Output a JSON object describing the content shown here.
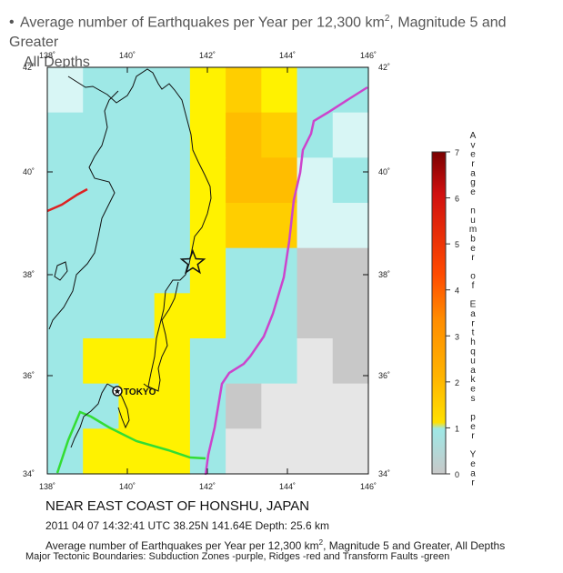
{
  "header": {
    "bullet": "•",
    "title_pre": "Average number of Earthquakes per Year per 12,300 km",
    "title_sup": "2",
    "title_post": ", Magnitude 5 and Greater",
    "title_line2": "All Depths"
  },
  "map": {
    "lon_ticks": [
      "138˚",
      "140˚",
      "142˚",
      "144˚",
      "146˚"
    ],
    "lat_ticks": [
      "42˚",
      "40˚",
      "38˚",
      "36˚",
      "34˚"
    ],
    "city_label": "TOKYO",
    "colors": {
      "cyan": "#9ee8e6",
      "light_cyan": "#d8f6f5",
      "yellow": "#fff200",
      "orange_light": "#ffce00",
      "orange": "#ffbd00",
      "gray": "#c8c8c8",
      "light_gray": "#e6e6e6",
      "subduction": "#cc44cc",
      "ridge": "#dd2222",
      "transform": "#33dd33"
    },
    "grid_values": [
      [
        "light_cyan",
        "cyan",
        "cyan",
        "cyan",
        "yellow",
        "orange_light",
        "yellow",
        "cyan",
        "cyan"
      ],
      [
        "cyan",
        "cyan",
        "cyan",
        "cyan",
        "yellow",
        "orange",
        "orange_light",
        "cyan",
        "light_cyan"
      ],
      [
        "cyan",
        "cyan",
        "cyan",
        "cyan",
        "yellow",
        "orange",
        "orange",
        "light_cyan",
        "cyan"
      ],
      [
        "cyan",
        "cyan",
        "cyan",
        "cyan",
        "yellow",
        "orange_light",
        "orange_light",
        "light_cyan",
        "light_cyan"
      ],
      [
        "cyan",
        "cyan",
        "cyan",
        "cyan",
        "yellow",
        "cyan",
        "cyan",
        "gray",
        "gray"
      ],
      [
        "cyan",
        "cyan",
        "cyan",
        "yellow",
        "yellow",
        "cyan",
        "cyan",
        "gray",
        "gray"
      ],
      [
        "cyan",
        "yellow",
        "yellow",
        "yellow",
        "cyan",
        "cyan",
        "cyan",
        "light_gray",
        "gray"
      ],
      [
        "cyan",
        "cyan",
        "yellow",
        "yellow",
        "cyan",
        "gray",
        "light_gray",
        "light_gray",
        "light_gray"
      ],
      [
        "cyan",
        "yellow",
        "yellow",
        "yellow",
        "cyan",
        "light_gray",
        "light_gray",
        "light_gray",
        "light_gray"
      ]
    ]
  },
  "legend": {
    "ticks": [
      "7",
      "6",
      "5",
      "4",
      "3",
      "2",
      "1",
      "0"
    ],
    "title_letters": [
      "A",
      "v",
      "e",
      "r",
      "a",
      "g",
      "e",
      "",
      "n",
      "u",
      "m",
      "b",
      "e",
      "r",
      "",
      "o",
      "f",
      "",
      "E",
      "a",
      "r",
      "t",
      "h",
      "q",
      "u",
      "a",
      "k",
      "e",
      "s",
      "",
      "p",
      "e",
      "r",
      "",
      "Y",
      "e",
      "a",
      "r"
    ],
    "gradient": [
      "#7a0000",
      "#d01010",
      "#ff4a00",
      "#ff8c00",
      "#ffb400",
      "#ffe000",
      "#9ee8e6",
      "#c8c8c8"
    ]
  },
  "captions": {
    "region": "NEAR EAST COAST OF HONSHU, JAPAN",
    "event": "2011 04 07 14:32:41 UTC 38.25N 141.64E Depth: 25.6 km",
    "avg_pre": "Average number of Earthquakes per Year per 12,300 km",
    "avg_sup": "2",
    "avg_post": ", Magnitude 5 and Greater, All Depths",
    "tectonic": "Major Tectonic Boundaries: Subduction Zones -purple, Ridges -red and Transform Faults -green"
  }
}
